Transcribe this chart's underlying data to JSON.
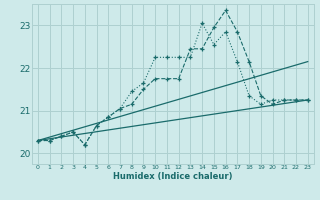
{
  "xlabel": "Humidex (Indice chaleur)",
  "background_color": "#ceeaea",
  "grid_color": "#aed0d0",
  "line_color": "#1a6b6b",
  "xlim": [
    -0.5,
    23.5
  ],
  "ylim": [
    19.75,
    23.5
  ],
  "yticks": [
    20,
    21,
    22,
    23
  ],
  "xticks": [
    0,
    1,
    2,
    3,
    4,
    5,
    6,
    7,
    8,
    9,
    10,
    11,
    12,
    13,
    14,
    15,
    16,
    17,
    18,
    19,
    20,
    21,
    22,
    23
  ],
  "series1_x": [
    0,
    1,
    2,
    3,
    4,
    5,
    6,
    7,
    8,
    9,
    10,
    11,
    12,
    13,
    14,
    15,
    16,
    17,
    18,
    19,
    20,
    21,
    22,
    23
  ],
  "series1_y": [
    20.3,
    20.3,
    20.4,
    20.5,
    20.2,
    20.65,
    20.85,
    21.05,
    21.15,
    21.5,
    21.75,
    21.75,
    21.75,
    22.45,
    22.45,
    22.95,
    23.35,
    22.85,
    22.15,
    21.35,
    21.15,
    21.25,
    21.25,
    21.25
  ],
  "series2_x": [
    0,
    1,
    2,
    3,
    4,
    5,
    6,
    7,
    8,
    9,
    10,
    11,
    12,
    13,
    14,
    15,
    16,
    17,
    18,
    19,
    20,
    21,
    22,
    23
  ],
  "series2_y": [
    20.3,
    20.3,
    20.4,
    20.5,
    20.2,
    20.65,
    20.85,
    21.05,
    21.45,
    21.65,
    22.25,
    22.25,
    22.25,
    22.25,
    23.05,
    22.55,
    22.85,
    22.15,
    21.35,
    21.15,
    21.25,
    21.25,
    21.25,
    21.25
  ],
  "series3_x": [
    0,
    23
  ],
  "series3_y": [
    20.3,
    21.25
  ],
  "series4_x": [
    0,
    23
  ],
  "series4_y": [
    20.3,
    22.15
  ]
}
